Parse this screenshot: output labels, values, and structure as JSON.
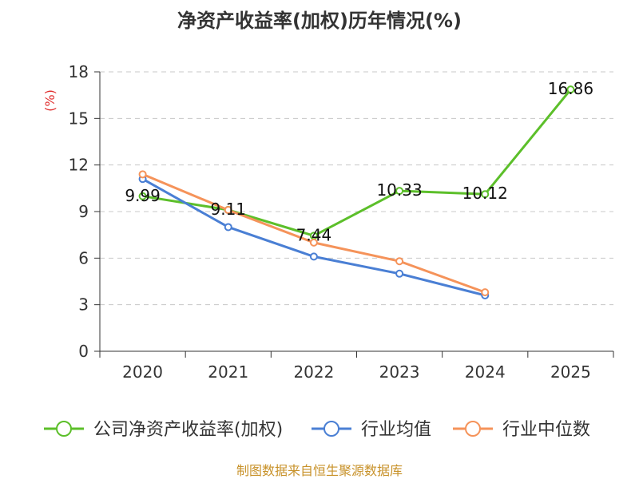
{
  "chart_data": {
    "type": "line",
    "title": "净资产收益率(加权)历年情况(%)",
    "ylabel": "(%)",
    "xlabel": "",
    "categories": [
      "2020",
      "2021",
      "2022",
      "2023",
      "2024",
      "2025"
    ],
    "ylim": [
      0,
      18
    ],
    "yticks": [
      0,
      3,
      6,
      9,
      12,
      15,
      18
    ],
    "grid": true,
    "legend_position": "bottom",
    "series": [
      {
        "name": "公司净资产收益率(加权)",
        "color": "#5cbf2a",
        "values": [
          9.99,
          9.11,
          7.44,
          10.33,
          10.12,
          16.86
        ],
        "labels": [
          "9.99",
          "9.11",
          "7.44",
          "10.33",
          "10.12",
          "16.86"
        ]
      },
      {
        "name": "行业均值",
        "color": "#4a7fd4",
        "values": [
          11.1,
          8.0,
          6.1,
          5.0,
          3.6,
          null
        ]
      },
      {
        "name": "行业中位数",
        "color": "#f5935a",
        "values": [
          11.4,
          9.1,
          7.0,
          5.8,
          3.8,
          null
        ]
      }
    ],
    "source": "制图数据来自恒生聚源数据库"
  }
}
